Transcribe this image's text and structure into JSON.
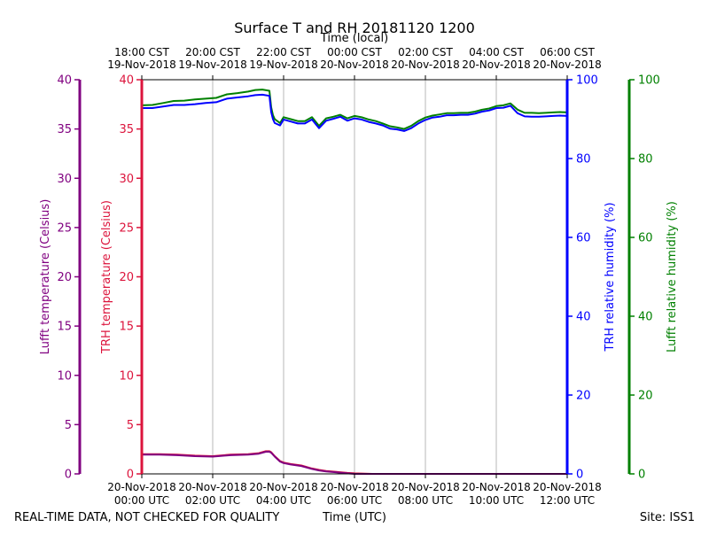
{
  "chart_data": {
    "type": "line",
    "title": "Surface T and RH 20181120 1200",
    "top_xlabel": "Time (local)",
    "xlabel": "Time (UTC)",
    "footer_left": "REAL-TIME DATA, NOT CHECKED FOR QUALITY",
    "footer_right": "Site: ISS1",
    "grid": true,
    "x_range_hours_utc": [
      0,
      12
    ],
    "x_ticks_bottom": [
      {
        "hour": 0,
        "date": "20-Nov-2018",
        "time": "00:00 UTC"
      },
      {
        "hour": 2,
        "date": "20-Nov-2018",
        "time": "02:00 UTC"
      },
      {
        "hour": 4,
        "date": "20-Nov-2018",
        "time": "04:00 UTC"
      },
      {
        "hour": 6,
        "date": "20-Nov-2018",
        "time": "06:00 UTC"
      },
      {
        "hour": 8,
        "date": "20-Nov-2018",
        "time": "08:00 UTC"
      },
      {
        "hour": 10,
        "date": "20-Nov-2018",
        "time": "10:00 UTC"
      },
      {
        "hour": 12,
        "date": "20-Nov-2018",
        "time": "12:00 UTC"
      }
    ],
    "x_ticks_top": [
      {
        "hour": 0,
        "time": "18:00 CST",
        "date": "19-Nov-2018"
      },
      {
        "hour": 2,
        "time": "20:00 CST",
        "date": "19-Nov-2018"
      },
      {
        "hour": 4,
        "time": "22:00 CST",
        "date": "19-Nov-2018"
      },
      {
        "hour": 6,
        "time": "00:00 CST",
        "date": "20-Nov-2018"
      },
      {
        "hour": 8,
        "time": "02:00 CST",
        "date": "20-Nov-2018"
      },
      {
        "hour": 10,
        "time": "04:00 CST",
        "date": "20-Nov-2018"
      },
      {
        "hour": 12,
        "time": "06:00 CST",
        "date": "20-Nov-2018"
      }
    ],
    "axes": {
      "lufft_temp": {
        "label": "Lufft temperature (Celsius)",
        "color": "#800080",
        "range": [
          0,
          40
        ],
        "ticks": [
          "0",
          "5",
          "10",
          "15",
          "20",
          "25",
          "30",
          "35",
          "40"
        ]
      },
      "trh_temp": {
        "label": "TRH temperature (Celsius)",
        "color": "#dc143c",
        "range": [
          0,
          40
        ],
        "ticks": [
          "0",
          "5",
          "10",
          "15",
          "20",
          "25",
          "30",
          "35",
          "40"
        ]
      },
      "trh_rh": {
        "label": "TRH relative humidity (%)",
        "color": "#0000ff",
        "range": [
          0,
          100
        ],
        "ticks": [
          "0",
          "20",
          "40",
          "60",
          "80",
          "100"
        ]
      },
      "lufft_rh": {
        "label": "Lufft relative humidity (%)",
        "color": "#008000",
        "range": [
          0,
          100
        ],
        "ticks": [
          "0",
          "20",
          "40",
          "60",
          "80",
          "100"
        ]
      }
    },
    "series": [
      {
        "axis": "lufft_rh",
        "color": "#008000",
        "x": [
          0,
          0.3,
          0.6,
          0.9,
          1.2,
          1.5,
          1.8,
          2.1,
          2.4,
          2.7,
          3.0,
          3.2,
          3.4,
          3.6,
          3.65,
          3.7,
          3.75,
          3.9,
          4.0,
          4.2,
          4.4,
          4.6,
          4.8,
          5.0,
          5.2,
          5.4,
          5.6,
          5.8,
          6.0,
          6.2,
          6.4,
          6.6,
          6.8,
          7.0,
          7.2,
          7.4,
          7.6,
          7.8,
          8.0,
          8.2,
          8.4,
          8.6,
          8.8,
          9.0,
          9.2,
          9.4,
          9.6,
          9.8,
          10.0,
          10.2,
          10.4,
          10.6,
          10.8,
          11.0,
          11.2,
          11.4,
          11.6,
          11.8,
          12.0
        ],
        "y": [
          93.5,
          93.6,
          94.1,
          94.6,
          94.7,
          95.0,
          95.2,
          95.4,
          96.3,
          96.6,
          97.0,
          97.4,
          97.5,
          97.2,
          93.0,
          91.0,
          90.0,
          89.0,
          90.5,
          90.0,
          89.5,
          89.5,
          90.5,
          88.3,
          90.2,
          90.6,
          91.1,
          90.2,
          90.8,
          90.5,
          89.9,
          89.5,
          88.9,
          88.2,
          87.9,
          87.5,
          88.3,
          89.5,
          90.4,
          90.9,
          91.2,
          91.5,
          91.5,
          91.6,
          91.6,
          91.9,
          92.4,
          92.7,
          93.3,
          93.5,
          94.0,
          92.4,
          91.6,
          91.6,
          91.5,
          91.6,
          91.7,
          91.8,
          91.7
        ]
      },
      {
        "axis": "trh_rh",
        "color": "#0000ff",
        "x": [
          0,
          0.3,
          0.6,
          0.9,
          1.2,
          1.5,
          1.8,
          2.1,
          2.4,
          2.7,
          3.0,
          3.2,
          3.4,
          3.6,
          3.65,
          3.7,
          3.75,
          3.9,
          4.0,
          4.2,
          4.4,
          4.6,
          4.8,
          5.0,
          5.2,
          5.4,
          5.6,
          5.8,
          6.0,
          6.2,
          6.4,
          6.6,
          6.8,
          7.0,
          7.2,
          7.4,
          7.6,
          7.8,
          8.0,
          8.2,
          8.4,
          8.6,
          8.8,
          9.0,
          9.2,
          9.4,
          9.6,
          9.8,
          10.0,
          10.2,
          10.4,
          10.6,
          10.8,
          11.0,
          11.2,
          11.4,
          11.6,
          11.8,
          12.0
        ],
        "y": [
          92.8,
          92.8,
          93.2,
          93.6,
          93.6,
          93.8,
          94.1,
          94.3,
          95.2,
          95.5,
          95.8,
          96.1,
          96.2,
          95.9,
          91.8,
          90.0,
          89.0,
          88.4,
          89.9,
          89.4,
          88.9,
          88.9,
          89.9,
          87.7,
          89.6,
          90.1,
          90.6,
          89.6,
          90.2,
          89.9,
          89.3,
          88.9,
          88.4,
          87.6,
          87.4,
          87.0,
          87.7,
          88.9,
          89.8,
          90.4,
          90.6,
          91.0,
          91.0,
          91.1,
          91.1,
          91.4,
          91.9,
          92.2,
          92.8,
          92.9,
          93.4,
          91.5,
          90.7,
          90.6,
          90.6,
          90.7,
          90.8,
          90.9,
          90.8
        ]
      },
      {
        "axis": "trh_temp",
        "color": "#dc143c",
        "x": [
          0,
          0.5,
          1.0,
          1.5,
          2.0,
          2.5,
          3.0,
          3.3,
          3.5,
          3.6,
          3.65,
          3.75,
          3.9,
          4.0,
          4.2,
          4.5,
          4.8,
          5.0,
          5.2,
          5.5,
          5.8,
          6.0,
          6.5,
          7.0,
          8.0,
          9.0,
          10.0,
          11.0,
          12.0
        ],
        "y": [
          2.0,
          2.0,
          1.95,
          1.85,
          1.8,
          1.95,
          2.0,
          2.1,
          2.3,
          2.3,
          2.2,
          1.8,
          1.3,
          1.15,
          1.0,
          0.85,
          0.55,
          0.4,
          0.3,
          0.2,
          0.1,
          0.05,
          0,
          0,
          0,
          0,
          0,
          0,
          0
        ]
      },
      {
        "axis": "lufft_temp",
        "color": "#800080",
        "x": [
          0,
          0.5,
          1.0,
          1.5,
          2.0,
          2.5,
          3.0,
          3.3,
          3.5,
          3.6,
          3.65,
          3.75,
          3.9,
          4.0,
          4.2,
          4.5,
          4.8,
          5.0,
          5.2,
          5.5,
          5.8,
          6.0,
          6.5,
          7.0,
          8.0,
          9.0,
          10.0,
          11.0,
          12.0
        ],
        "y": [
          1.95,
          1.95,
          1.9,
          1.8,
          1.75,
          1.9,
          1.95,
          2.05,
          2.25,
          2.25,
          2.15,
          1.75,
          1.25,
          1.1,
          0.95,
          0.8,
          0.5,
          0.35,
          0.25,
          0.15,
          0.05,
          0,
          0,
          0,
          0,
          0,
          0,
          0,
          0
        ]
      }
    ]
  }
}
